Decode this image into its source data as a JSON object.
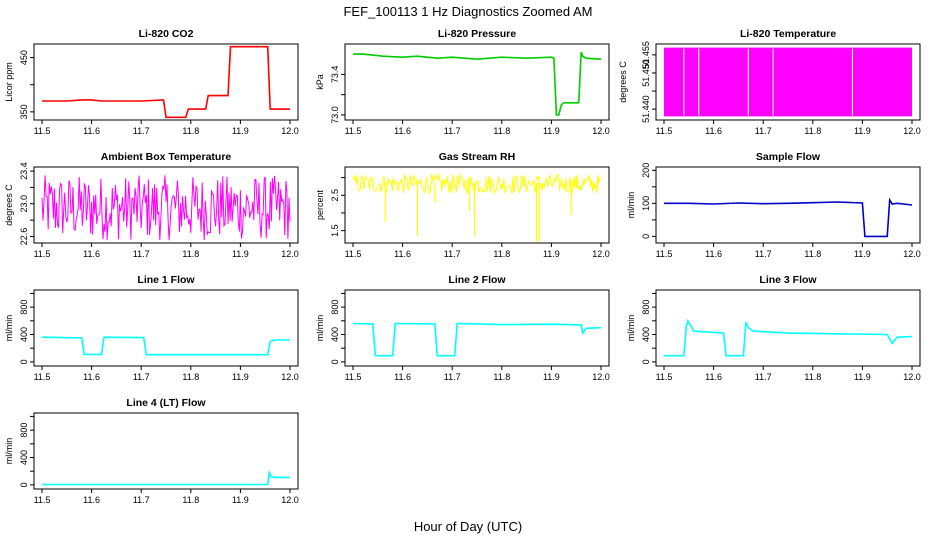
{
  "main_title": "FEF_100113  1 Hz Diagnostics Zoomed AM",
  "x_axis_label": "Hour of Day (UTC)",
  "chart_data": [
    {
      "id": "co2",
      "type": "line",
      "title": "Li-820 CO2",
      "ylabel": "Licor ppm",
      "color": "#ff0000",
      "xlim": [
        11.5,
        12.0
      ],
      "xticks": [
        "11.5",
        "11.6",
        "11.7",
        "11.8",
        "11.9",
        "12.0"
      ],
      "ylim": [
        335,
        475
      ],
      "yticks": [
        350,
        400,
        450
      ],
      "ytick_labels": [
        "350",
        "",
        "450"
      ],
      "x": [
        11.5,
        11.55,
        11.58,
        11.6,
        11.62,
        11.65,
        11.7,
        11.745,
        11.75,
        11.755,
        11.79,
        11.795,
        11.83,
        11.835,
        11.875,
        11.88,
        11.92,
        11.955,
        11.96,
        11.97,
        12.0
      ],
      "y": [
        370,
        370,
        372,
        372,
        370,
        370,
        370,
        372,
        340,
        340,
        340,
        355,
        355,
        380,
        380,
        470,
        470,
        470,
        355,
        355,
        355
      ]
    },
    {
      "id": "pressure",
      "type": "line",
      "title": "Li-820 Pressure",
      "ylabel": "kPa",
      "color": "#00cc00",
      "xlim": [
        11.5,
        12.0
      ],
      "xticks": [
        "11.5",
        "11.6",
        "11.7",
        "11.8",
        "11.9",
        "12.0"
      ],
      "ylim": [
        72.95,
        73.7
      ],
      "yticks": [
        73.0,
        73.2,
        73.4
      ],
      "ytick_labels": [
        "73.0",
        "",
        "73.4"
      ],
      "x": [
        11.5,
        11.52,
        11.56,
        11.6,
        11.63,
        11.67,
        11.7,
        11.75,
        11.8,
        11.85,
        11.9,
        11.905,
        11.91,
        11.915,
        11.92,
        11.925,
        11.955,
        11.96,
        11.963,
        11.97,
        12.0
      ],
      "y": [
        73.6,
        73.6,
        73.58,
        73.57,
        73.58,
        73.56,
        73.57,
        73.55,
        73.57,
        73.56,
        73.57,
        73.56,
        73.0,
        73.0,
        73.1,
        73.12,
        73.12,
        73.62,
        73.58,
        73.56,
        73.55
      ]
    },
    {
      "id": "licor_temp",
      "type": "line",
      "title": "Li-820 Temperature",
      "ylabel": "degrees C",
      "color": "#ff00ff",
      "xlim": [
        11.5,
        12.0
      ],
      "xticks": [
        "11.5",
        "11.6",
        "11.7",
        "11.8",
        "11.9",
        "12.0"
      ],
      "ylim": [
        51.437,
        51.458
      ],
      "yticks": [
        51.44,
        51.445,
        51.45,
        51.455
      ],
      "ytick_labels": [
        "51.440",
        "",
        "51.450",
        "51.455"
      ],
      "band": [
        51.438,
        51.457
      ],
      "gaps": [
        11.54,
        11.57,
        11.67,
        11.72,
        11.88
      ]
    },
    {
      "id": "box_temp",
      "type": "line",
      "title": "Ambient Box Temperature",
      "ylabel": "degrees C",
      "color": "#ff00ff",
      "xlim": [
        11.5,
        12.0
      ],
      "xticks": [
        "11.5",
        "11.6",
        "11.7",
        "11.8",
        "11.9",
        "12.0"
      ],
      "ylim": [
        22.52,
        23.45
      ],
      "yticks": [
        22.6,
        22.8,
        23.0,
        23.2,
        23.4
      ],
      "ytick_labels": [
        "22.6",
        "",
        "23.0",
        "",
        "23.4"
      ],
      "center": 23.0,
      "range": [
        22.55,
        23.35
      ]
    },
    {
      "id": "rh",
      "type": "line",
      "title": "Gas Stream RH",
      "ylabel": "percent",
      "color": "#ffff00",
      "xlim": [
        11.5,
        12.0
      ],
      "xticks": [
        "11.5",
        "11.6",
        "11.7",
        "11.8",
        "11.9",
        "12.0"
      ],
      "ylim": [
        1.15,
        3.3
      ],
      "yticks": [
        1.5,
        2.0,
        2.5,
        3.0
      ],
      "ytick_labels": [
        "1.5",
        "",
        "2.5",
        ""
      ],
      "center": 2.85,
      "range": [
        2.55,
        3.1
      ],
      "spikes": [
        {
          "x": 11.565,
          "y": 1.75
        },
        {
          "x": 11.63,
          "y": 1.35
        },
        {
          "x": 11.665,
          "y": 2.3
        },
        {
          "x": 11.735,
          "y": 2.05
        },
        {
          "x": 11.745,
          "y": 1.35
        },
        {
          "x": 11.87,
          "y": 1.2
        },
        {
          "x": 11.875,
          "y": 1.2
        },
        {
          "x": 11.94,
          "y": 1.95
        }
      ]
    },
    {
      "id": "sample_flow",
      "type": "line",
      "title": "Sample Flow",
      "ylabel": "ml/min",
      "color": "#0000cc",
      "xlim": [
        11.5,
        12.0
      ],
      "xticks": [
        "11.5",
        "11.6",
        "11.7",
        "11.8",
        "11.9",
        "12.0"
      ],
      "ylim": [
        -20,
        210
      ],
      "yticks": [
        0,
        50,
        100,
        150,
        200
      ],
      "ytick_labels": [
        "0",
        "",
        "100",
        "",
        "200"
      ],
      "x": [
        11.5,
        11.55,
        11.6,
        11.65,
        11.7,
        11.75,
        11.8,
        11.85,
        11.9,
        11.905,
        11.91,
        11.95,
        11.955,
        11.96,
        11.97,
        12.0
      ],
      "y": [
        100,
        100,
        98,
        101,
        99,
        100,
        102,
        104,
        101,
        0,
        0,
        0,
        110,
        98,
        100,
        95
      ]
    },
    {
      "id": "line1",
      "type": "line",
      "title": "Line 1 Flow",
      "ylabel": "ml/min",
      "color": "#00ffff",
      "xlim": [
        11.5,
        12.0
      ],
      "xticks": [
        "11.5",
        "11.6",
        "11.7",
        "11.8",
        "11.9",
        "12.0"
      ],
      "ylim": [
        -60,
        1050
      ],
      "yticks": [
        0,
        200,
        400,
        600,
        800,
        1000
      ],
      "ytick_labels": [
        "0",
        "",
        "400",
        "",
        "800",
        ""
      ],
      "x": [
        11.5,
        11.58,
        11.585,
        11.62,
        11.625,
        11.705,
        11.71,
        11.955,
        11.96,
        11.97,
        12.0
      ],
      "y": [
        360,
        350,
        110,
        110,
        360,
        355,
        105,
        105,
        300,
        320,
        320
      ]
    },
    {
      "id": "line2",
      "type": "line",
      "title": "Line 2 Flow",
      "ylabel": "ml/min",
      "color": "#00ffff",
      "xlim": [
        11.5,
        12.0
      ],
      "xticks": [
        "11.5",
        "11.6",
        "11.7",
        "11.8",
        "11.9",
        "12.0"
      ],
      "ylim": [
        -60,
        1050
      ],
      "yticks": [
        0,
        200,
        400,
        600,
        800,
        1000
      ],
      "ytick_labels": [
        "0",
        "",
        "400",
        "",
        "800",
        ""
      ],
      "x": [
        11.5,
        11.54,
        11.545,
        11.58,
        11.585,
        11.665,
        11.67,
        11.705,
        11.71,
        11.8,
        11.9,
        11.96,
        11.963,
        11.97,
        12.0
      ],
      "y": [
        560,
        555,
        90,
        90,
        560,
        555,
        90,
        90,
        560,
        545,
        550,
        540,
        420,
        490,
        500
      ]
    },
    {
      "id": "line3",
      "type": "line",
      "title": "Line 3 Flow",
      "ylabel": "ml/min",
      "color": "#00ffff",
      "xlim": [
        11.5,
        12.0
      ],
      "xticks": [
        "11.5",
        "11.6",
        "11.7",
        "11.8",
        "11.9",
        "12.0"
      ],
      "ylim": [
        -60,
        1050
      ],
      "yticks": [
        0,
        200,
        400,
        600,
        800,
        1000
      ],
      "ytick_labels": [
        "0",
        "",
        "400",
        "",
        "800",
        ""
      ],
      "x": [
        11.5,
        11.54,
        11.545,
        11.548,
        11.56,
        11.62,
        11.625,
        11.66,
        11.665,
        11.67,
        11.68,
        11.75,
        11.85,
        11.95,
        11.96,
        11.97,
        12.0
      ],
      "y": [
        90,
        90,
        520,
        600,
        450,
        420,
        90,
        90,
        580,
        500,
        450,
        420,
        410,
        400,
        270,
        360,
        370
      ]
    },
    {
      "id": "line4",
      "type": "line",
      "title": "Line 4 (LT) Flow",
      "ylabel": "ml/min",
      "color": "#00ffff",
      "xlim": [
        11.5,
        12.0
      ],
      "xticks": [
        "11.5",
        "11.6",
        "11.7",
        "11.8",
        "11.9",
        "12.0"
      ],
      "ylim": [
        -60,
        1050
      ],
      "yticks": [
        0,
        200,
        400,
        600,
        800,
        1000
      ],
      "ytick_labels": [
        "0",
        "",
        "400",
        "",
        "800",
        ""
      ],
      "x": [
        11.5,
        11.7,
        11.955,
        11.958,
        11.962,
        11.97,
        12.0
      ],
      "y": [
        5,
        5,
        5,
        180,
        120,
        110,
        110
      ]
    }
  ]
}
